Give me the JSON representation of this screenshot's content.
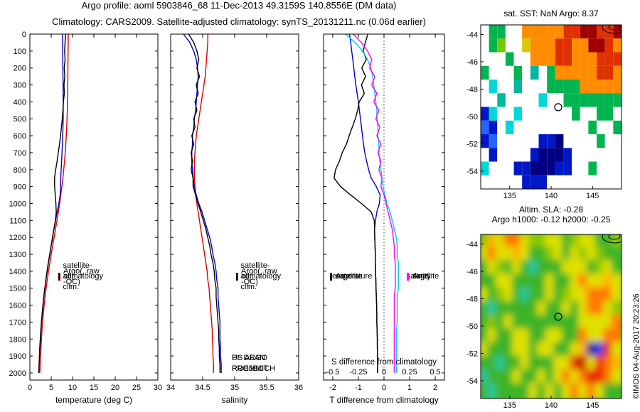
{
  "title": {
    "line1": "Argo profile: aoml 5903846_68 11-Dec-2013 49.3159S 140.8556E (DM data)",
    "line2": "Climatology: CARS2009. Satellite-adjusted climatology: synTS_20131211.nc (0.06d earlier)"
  },
  "copyright": "©IMOS 04-Aug-2017 20:23:26",
  "notes": {
    "project": "US ARGO PROJECT",
    "pi": "PI: DEAN ROEMMICH"
  },
  "legends": {
    "profile": [
      {
        "label": "climatology",
        "color": "#dd0000"
      },
      {
        "label": "satellite-adj. clim.",
        "color": "#0000cc"
      },
      {
        "label": "Argo(..raw -QC)",
        "color": "#000000"
      }
    ],
    "diff_temperature": {
      "header": "temperature",
      "entries": [
        {
          "label": "satellite",
          "color": "#0000cc"
        },
        {
          "label": "Argo",
          "color": "#000000"
        }
      ]
    },
    "diff_salinity": {
      "header": "salinity",
      "entries": [
        {
          "label": "satellite",
          "color": "#00ccee"
        },
        {
          "label": "Argo",
          "color": "#ff00ff"
        }
      ]
    }
  },
  "depths": [
    0,
    50,
    100,
    150,
    200,
    250,
    300,
    350,
    400,
    450,
    500,
    550,
    600,
    650,
    700,
    750,
    800,
    850,
    900,
    950,
    1000,
    1050,
    1100,
    1150,
    1200,
    1250,
    1300,
    1350,
    1400,
    1450,
    1500,
    1550,
    1600,
    1650,
    1700,
    1750,
    1800,
    1850,
    1900,
    1950,
    2000
  ],
  "chart_data": [
    {
      "id": "temperature",
      "type": "line",
      "xlabel": "temperature (deg C)",
      "xlim": [
        0,
        30
      ],
      "xticks": [
        0,
        5,
        10,
        15,
        20,
        25,
        30
      ],
      "ylim": [
        0,
        2042
      ],
      "yticks": [
        0,
        100,
        200,
        300,
        400,
        500,
        600,
        700,
        800,
        900,
        1000,
        1100,
        1200,
        1300,
        1400,
        1500,
        1600,
        1700,
        1800,
        1900,
        2000
      ],
      "ytick_labels": true,
      "series": [
        {
          "name": "climatology",
          "color": "#dd0000",
          "values": [
            9.0,
            8.98,
            8.96,
            8.94,
            8.92,
            8.9,
            8.88,
            8.85,
            8.82,
            8.78,
            8.72,
            8.64,
            8.54,
            8.42,
            8.28,
            8.12,
            7.94,
            7.73,
            7.5,
            7.25,
            6.98,
            6.68,
            6.36,
            6.02,
            5.68,
            5.34,
            5.0,
            4.68,
            4.37,
            4.08,
            3.81,
            3.57,
            3.35,
            3.16,
            2.99,
            2.84,
            2.71,
            2.6,
            2.5,
            2.41,
            2.33
          ]
        },
        {
          "name": "satellite-adj. clim.",
          "color": "#0000cc",
          "values": [
            7.65,
            7.68,
            7.7,
            7.72,
            7.74,
            7.76,
            7.78,
            7.8,
            7.82,
            7.82,
            7.8,
            7.76,
            7.7,
            7.62,
            7.53,
            7.44,
            7.34,
            7.23,
            7.2,
            7.1,
            6.8,
            6.4,
            6.03,
            5.65,
            5.32,
            4.99,
            4.66,
            4.34,
            4.04,
            3.76,
            3.5,
            3.27,
            3.06,
            2.88,
            2.71,
            2.57,
            2.45,
            2.34,
            2.25,
            2.16,
            2.08
          ]
        },
        {
          "name": "Argo(..raw -QC)",
          "color": "#000000",
          "values": [
            8.37,
            8.25,
            8.15,
            8.25,
            8.05,
            8.18,
            8.0,
            8.08,
            7.85,
            7.75,
            7.6,
            7.4,
            7.18,
            6.95,
            6.65,
            6.38,
            6.05,
            5.78,
            5.8,
            5.95,
            6.1,
            6.18,
            5.98,
            5.65,
            5.32,
            4.99,
            4.66,
            4.34,
            4.04,
            3.76,
            3.5,
            3.27,
            3.06,
            2.88,
            2.71,
            2.57,
            2.45,
            2.34,
            2.25,
            2.16,
            2.08
          ]
        }
      ]
    },
    {
      "id": "salinity",
      "type": "line",
      "xlabel": "salinity",
      "xlim": [
        34,
        36
      ],
      "xticks": [
        34,
        34.5,
        35,
        35.5,
        36
      ],
      "ylim": [
        0,
        2042
      ],
      "series": [
        {
          "name": "climatology",
          "color": "#dd0000",
          "values": [
            34.58,
            34.58,
            34.57,
            34.56,
            34.55,
            34.54,
            34.52,
            34.5,
            34.48,
            34.46,
            34.44,
            34.42,
            34.4,
            34.39,
            34.38,
            34.37,
            34.37,
            34.37,
            34.38,
            34.39,
            34.41,
            34.43,
            34.45,
            34.47,
            34.49,
            34.51,
            34.53,
            34.55,
            34.57,
            34.58,
            34.6,
            34.61,
            34.62,
            34.63,
            34.64,
            34.65,
            34.65,
            34.66,
            34.66,
            34.67,
            34.67
          ]
        },
        {
          "name": "satellite-adj. clim.",
          "color": "#0000cc",
          "values": [
            34.2,
            34.3,
            34.36,
            34.4,
            34.42,
            34.43,
            34.42,
            34.41,
            34.4,
            34.39,
            34.37,
            34.36,
            34.34,
            34.34,
            34.33,
            34.33,
            34.34,
            34.35,
            34.37,
            34.4,
            34.44,
            34.49,
            34.53,
            34.57,
            34.61,
            34.64,
            34.66,
            34.69,
            34.71,
            34.72,
            34.74,
            34.74,
            34.75,
            34.76,
            34.77,
            34.77,
            34.77,
            34.78,
            34.78,
            34.79,
            34.79
          ]
        },
        {
          "name": "Argo(..raw -QC)",
          "color": "#000000",
          "values": [
            34.28,
            34.36,
            34.41,
            34.44,
            34.41,
            34.45,
            34.4,
            34.43,
            34.38,
            34.41,
            34.36,
            34.38,
            34.33,
            34.36,
            34.32,
            34.34,
            34.32,
            34.35,
            34.35,
            34.39,
            34.43,
            34.47,
            34.51,
            34.55,
            34.58,
            34.61,
            34.63,
            34.66,
            34.68,
            34.69,
            34.71,
            34.71,
            34.72,
            34.73,
            34.74,
            34.75,
            34.75,
            34.76,
            34.76,
            34.77,
            34.77
          ]
        }
      ]
    },
    {
      "id": "difference",
      "type": "line",
      "xlabel": "T difference from climatology",
      "xlim": [
        -2.36,
        2.36
      ],
      "xticks": [
        -2,
        -1,
        0,
        1,
        2
      ],
      "zero_line": true,
      "s_axis": {
        "label": "S difference from climatology",
        "ticks": [
          -0.5,
          -0.25,
          0,
          0.25,
          0.5
        ],
        "scale": 4
      },
      "series": [
        {
          "name": "T satellite",
          "color": "#0000cc",
          "values": [
            -1.35,
            -1.3,
            -1.26,
            -1.22,
            -1.18,
            -1.14,
            -1.1,
            -1.05,
            -1.0,
            -0.96,
            -0.92,
            -0.88,
            -0.84,
            -0.8,
            -0.75,
            -0.68,
            -0.6,
            -0.5,
            -0.3,
            -0.15,
            -0.18,
            -0.28,
            -0.33,
            -0.37,
            -0.36,
            -0.35,
            -0.34,
            -0.34,
            -0.33,
            -0.32,
            -0.31,
            -0.3,
            -0.29,
            -0.28,
            -0.28,
            -0.27,
            -0.26,
            -0.26,
            -0.25,
            -0.25,
            -0.25
          ]
        },
        {
          "name": "T Argo",
          "color": "#000000",
          "values": [
            -0.63,
            -0.73,
            -0.81,
            -0.69,
            -0.87,
            -0.72,
            -0.88,
            -0.77,
            -0.97,
            -1.03,
            -1.12,
            -1.24,
            -1.36,
            -1.47,
            -1.63,
            -1.74,
            -1.89,
            -1.95,
            -1.7,
            -1.3,
            -0.88,
            -0.5,
            -0.38,
            -0.37,
            -0.36,
            -0.35,
            -0.34,
            -0.34,
            -0.33,
            -0.32,
            -0.31,
            -0.3,
            -0.29,
            -0.28,
            -0.28,
            -0.27,
            -0.26,
            -0.26,
            -0.25,
            -0.25,
            -0.25
          ]
        },
        {
          "name": "S satellite",
          "color": "#00ccee",
          "scale": 4,
          "values": [
            -0.38,
            -0.28,
            -0.21,
            -0.16,
            -0.13,
            -0.11,
            -0.1,
            -0.09,
            -0.08,
            -0.07,
            -0.07,
            -0.06,
            -0.06,
            -0.05,
            -0.05,
            -0.04,
            -0.03,
            -0.02,
            -0.01,
            0.01,
            0.03,
            0.06,
            0.08,
            0.1,
            0.12,
            0.13,
            0.13,
            0.14,
            0.14,
            0.14,
            0.14,
            0.13,
            0.13,
            0.13,
            0.13,
            0.12,
            0.12,
            0.12,
            0.12,
            0.12,
            0.12
          ]
        },
        {
          "name": "S Argo",
          "color": "#ff00ff",
          "scale": 4,
          "values": [
            -0.3,
            -0.22,
            -0.16,
            -0.12,
            -0.14,
            -0.09,
            -0.12,
            -0.07,
            -0.1,
            -0.05,
            -0.08,
            -0.04,
            -0.07,
            -0.03,
            -0.06,
            -0.03,
            -0.05,
            -0.02,
            -0.03,
            0.0,
            0.02,
            0.04,
            0.06,
            0.08,
            0.09,
            0.1,
            0.1,
            0.11,
            0.11,
            0.11,
            0.11,
            0.1,
            0.1,
            0.1,
            0.1,
            0.1,
            0.1,
            0.1,
            0.1,
            0.1,
            0.1
          ]
        }
      ]
    },
    {
      "id": "sst",
      "type": "heatmap",
      "title": "sat. SST: NaN Argo: 8.37",
      "lon_range": [
        131.5,
        148.5
      ],
      "lat_range": [
        -43.3,
        -55.3
      ],
      "xticks": [
        135,
        140,
        145
      ],
      "yticks": [
        -44,
        -46,
        -48,
        -50,
        -52,
        -54
      ],
      "background": "#ffffff",
      "smooth": false,
      "marker": {
        "lon": 140.86,
        "lat": -49.32
      },
      "palette": {
        "W": "#ffffff",
        "M": "#a00000",
        "R": "#e03000",
        "O": "#ff8c00",
        "Y": "#d8c800",
        "G": "#00b450",
        "g": "#70c800",
        "T": "#00b89b",
        "C": "#00d8d8",
        "b": "#2864ff",
        "B": "#0018c8",
        "N": "#000080"
      },
      "rows": [
        "WGGWWOOOOORRMMRRM",
        "WGgWWYOOORROOMMRO",
        "WWWGWWOOORROOORRR",
        "GWWWGWTWGOOOOORRO",
        "WCWWTWWWGGGGOOOOO",
        "WWTWWWWCWWGGGGGGG",
        "BCWWCWWWWWWGWWGGW",
        "bBWCWWWWWWWWWGWWG",
        "BbWWWWWBBNWWWWGWW",
        "WBWWWWBNNNBWWWWWW",
        "CWWWBBNNNBBWWGWWW",
        "WWWWWBBBWWWWWWWWW"
      ]
    },
    {
      "id": "sla",
      "type": "heatmap",
      "title1": "Altim. SLA: -0.28",
      "title2": "Argo h1000: -0.12 h2000: -0.25",
      "lon_range": [
        131.5,
        148.5
      ],
      "lat_range": [
        -43.3,
        -55.3
      ],
      "xticks": [
        135,
        140,
        145
      ],
      "yticks": [
        -44,
        -46,
        -48,
        -50,
        -52,
        -54
      ],
      "background": "#3cb428",
      "smooth": true,
      "marker": {
        "lon": 140.86,
        "lat": -49.32
      },
      "palette": {
        "G": "#3cb428",
        "g": "#8cc800",
        "Y": "#e0e000",
        "o": "#ffb400",
        "O": "#ff7800",
        "R": "#e82000",
        "r": "#c00000",
        "C": "#28c8a0",
        "B": "#2840f0",
        "N": "#0018a0"
      },
      "rows": [
        "goYOOYggYYGgYYGGg",
        "YOYYoYGGgYGYgYgGG",
        "GYgGYGCGGGYYYGgYG",
        "GGYYGGGGYGGYOYYoY",
        "YGgYGCGGYGgYYOOOY",
        "GCGGGGGYGGYGYOOYg",
        "GgGYGGGGGGGGYYYYO",
        "GYGGYYGGYYGGOYYOO",
        "YGGGYYGYYGGYoNBRY",
        "GGCGGYGGGYYRrYROo",
        "CGGGYGGYGYOYORROY",
        "GCGGGGYGYGYOYOYGG"
      ]
    }
  ]
}
